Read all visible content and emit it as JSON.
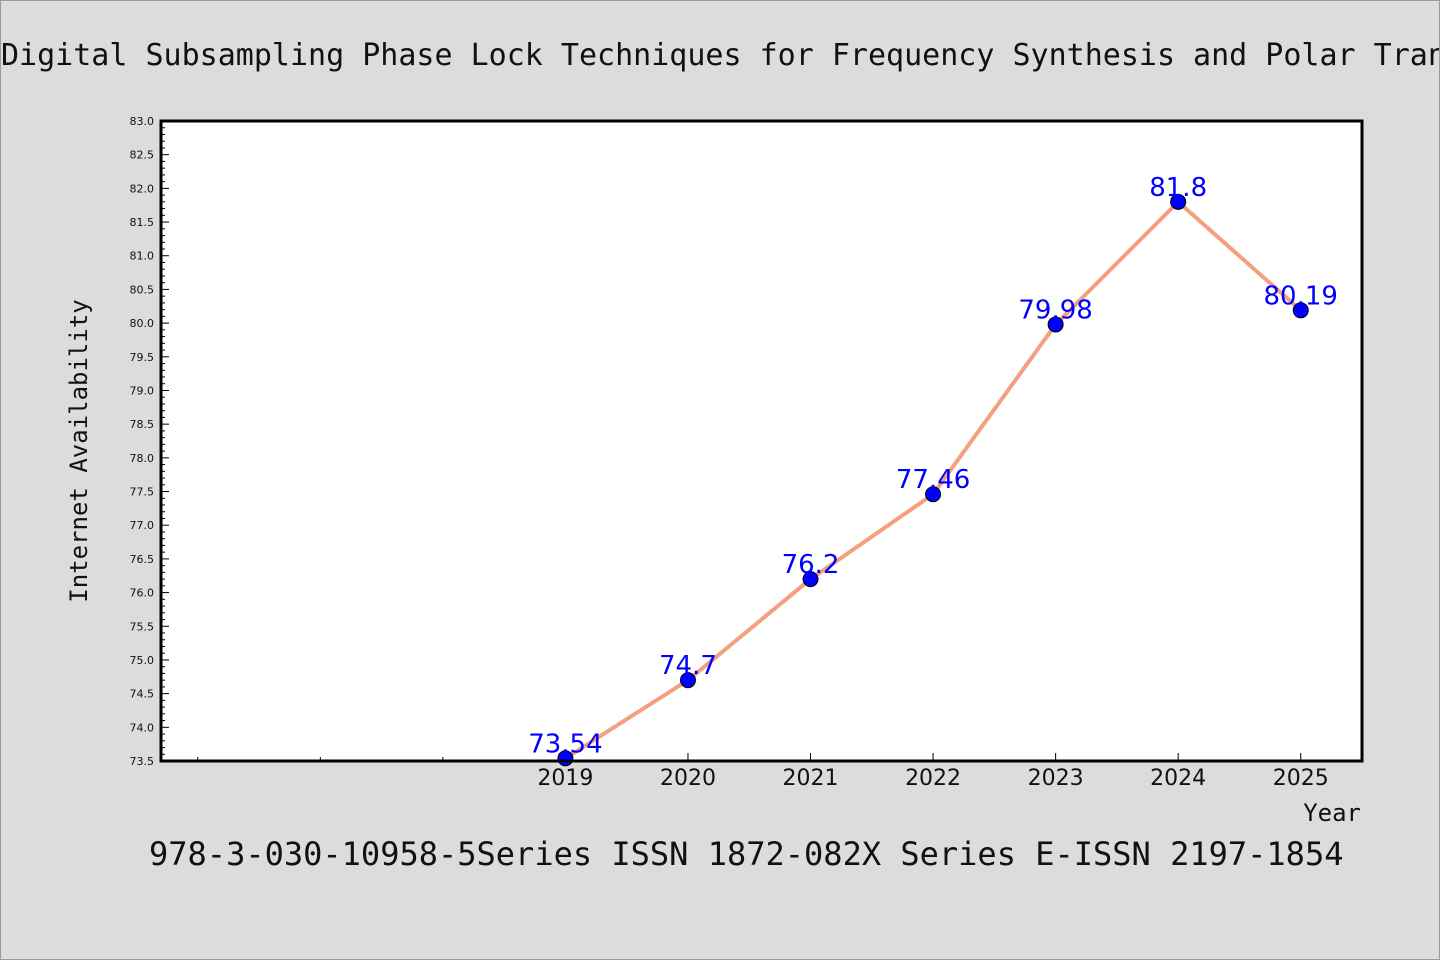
{
  "chart_data": {
    "type": "line",
    "title": "Digital Subsampling Phase Lock Techniques for Frequency Synthesis and Polar Tran",
    "xlabel": "Year",
    "ylabel": "Internet Availability",
    "footer": "978-3-030-10958-5Series ISSN 1872-082X Series E-ISSN 2197-1854",
    "x": [
      2019,
      2020,
      2021,
      2022,
      2023,
      2024,
      2025
    ],
    "xlim": [
      2015.7,
      2025.5
    ],
    "ylim": [
      73.5,
      83.0
    ],
    "yticks": [
      "73.5",
      "74.0",
      "74.5",
      "75.0",
      "75.5",
      "76.0",
      "76.5",
      "77.0",
      "77.5",
      "78.0",
      "78.5",
      "79.0",
      "79.5",
      "80.0",
      "80.5",
      "81.0",
      "81.5",
      "82.0",
      "82.5",
      "83.0"
    ],
    "series": [
      {
        "values": [
          73.54,
          74.7,
          76.2,
          77.46,
          79.98,
          81.8,
          80.19
        ],
        "labels": [
          "73.54",
          "74.7",
          "76.2",
          "77.46",
          "79.98",
          "81.8",
          "80.19"
        ]
      }
    ],
    "grid": false,
    "colors": {
      "line": "#f4a07e",
      "marker": "#0000ff",
      "label": "#0000ff",
      "background": "#dcdcdc",
      "plot_bg": "#ffffff"
    }
  }
}
